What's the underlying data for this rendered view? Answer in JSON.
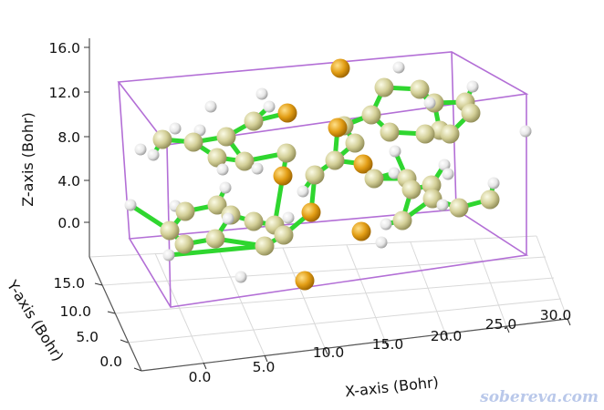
{
  "axes": {
    "z": {
      "label": "Z-axis (Bohr)",
      "ticks": [
        "16.0",
        "12.0",
        "8.0",
        "4.0",
        "0.0"
      ]
    },
    "y": {
      "label": "Y-axis (Bohr)",
      "ticks": [
        "15.0",
        "10.0",
        "5.0",
        "0.0"
      ]
    },
    "x": {
      "label": "X-axis (Bohr)",
      "ticks": [
        "0.0",
        "5.0",
        "10.0",
        "15.0",
        "20.0",
        "25.0",
        "30.0"
      ]
    }
  },
  "watermark": "sobereva.com",
  "colors": {
    "box": "#b36fd6",
    "bond": "#2fd62f",
    "carbon": "#d6d49a",
    "hydrogen": "#f0f0f0",
    "heteroatom": "#e3a21a",
    "grid": "#d9d9d9"
  }
}
